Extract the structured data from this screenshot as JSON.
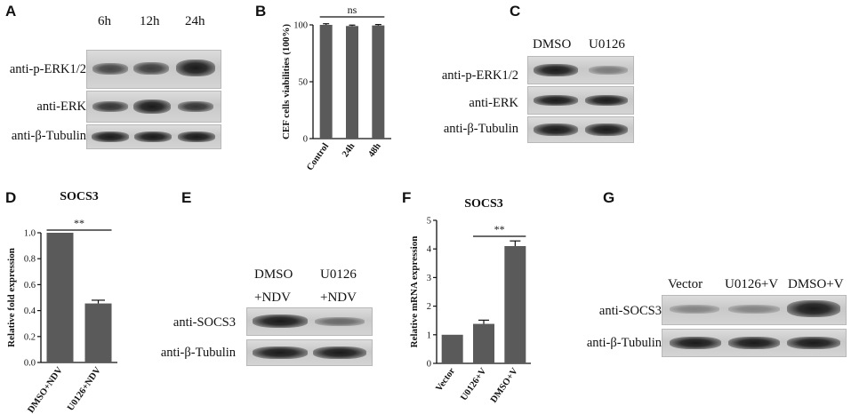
{
  "panels": {
    "A": {
      "letter": "A",
      "timepoints": [
        "6h",
        "12h",
        "24h"
      ],
      "rows": [
        "anti-p-ERK1/2",
        "anti-ERK",
        "anti-β-Tubulin"
      ]
    },
    "B": {
      "letter": "B"
    },
    "C": {
      "letter": "C",
      "columns": [
        "DMSO",
        "U0126"
      ],
      "rows": [
        "anti-p-ERK1/2",
        "anti-ERK",
        "anti-β-Tubulin"
      ]
    },
    "D": {
      "letter": "D"
    },
    "E": {
      "letter": "E",
      "columns_line1": [
        "DMSO",
        "U0126"
      ],
      "columns_line2": [
        "+NDV",
        "+NDV"
      ],
      "rows": [
        "anti-SOCS3",
        "anti-β-Tubulin"
      ]
    },
    "F": {
      "letter": "F"
    },
    "G": {
      "letter": "G",
      "columns": [
        "Vector",
        "U0126+V",
        "DMSO+V"
      ],
      "rows": [
        "anti-SOCS3",
        "anti-β-Tubulin"
      ]
    }
  },
  "chart_data": [
    {
      "panel": "B",
      "type": "bar",
      "title": "",
      "ylabel": "CEF cells viabilities (100%)",
      "xlabel": "",
      "categories": [
        "Control",
        "24h",
        "48h"
      ],
      "values": [
        100,
        99,
        99.5
      ],
      "errors": [
        1,
        0.8,
        0.8
      ],
      "ylim": [
        0,
        100
      ],
      "yticks": [
        "0",
        "50",
        "100"
      ],
      "significance": "ns",
      "bar_color": "#5a5a5a",
      "grid": false
    },
    {
      "panel": "D",
      "type": "bar",
      "title": "SOCS3",
      "ylabel": "Relative fold expression",
      "xlabel": "",
      "categories": [
        "DMSO+NDV",
        "U0126+NDV"
      ],
      "values": [
        1.0,
        0.455
      ],
      "errors": [
        0,
        0.025
      ],
      "ylim": [
        0,
        1.0
      ],
      "yticks": [
        "0.0",
        "0.2",
        "0.4",
        "0.6",
        "0.8",
        "1.0"
      ],
      "significance": "**",
      "bar_color": "#5a5a5a",
      "grid": false
    },
    {
      "panel": "F",
      "type": "bar",
      "title": "SOCS3",
      "ylabel": "Relative mRNA expression",
      "xlabel": "",
      "categories": [
        "Vector",
        "U0126+V",
        "DMSO+V"
      ],
      "values": [
        1.0,
        1.38,
        4.1
      ],
      "errors": [
        0,
        0.13,
        0.18
      ],
      "ylim": [
        0,
        5
      ],
      "yticks": [
        "0",
        "1",
        "2",
        "3",
        "4",
        "5"
      ],
      "significance": "**",
      "bar_color": "#5a5a5a",
      "grid": false
    }
  ]
}
